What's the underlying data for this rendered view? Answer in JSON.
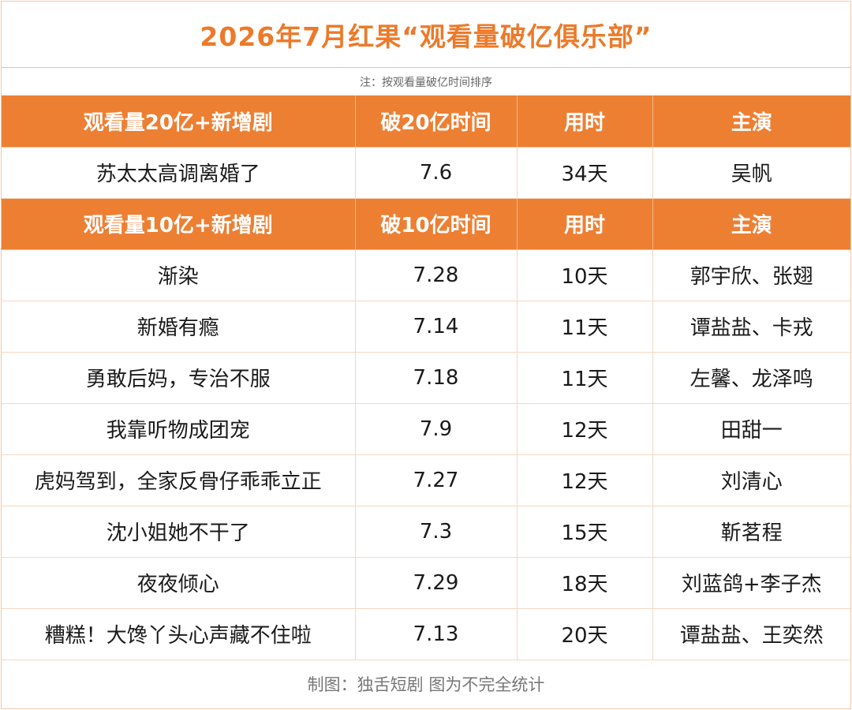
{
  "title": "2026年7月红果“观看量破亿俱乐部”",
  "note": "注：按观看量破亿时间排序",
  "section_20": {
    "headers": [
      "观看量20亿+新增剧",
      "破20亿时间",
      "用时",
      "主演"
    ],
    "rows": [
      [
        "苏太太高调离婚了",
        "7.6",
        "34天",
        "吴帆"
      ]
    ]
  },
  "section_10": {
    "headers": [
      "观看量10亿+新增剧",
      "破10亿时间",
      "用时",
      "主演"
    ],
    "rows": [
      [
        "渐染",
        "7.28",
        "10天",
        "郭宇欣、张翅"
      ],
      [
        "新婚有瘾",
        "7.14",
        "11天",
        "谭盐盐、卡戎"
      ],
      [
        "勇敢后妈，专治不服",
        "7.18",
        "11天",
        "左馨、龙泽鸣"
      ],
      [
        "我靠听物成团宠",
        "7.9",
        "12天",
        "田甜一"
      ],
      [
        "虎妈驾到，全家反骨仔乖乖立正",
        "7.27",
        "12天",
        "刘清心"
      ],
      [
        "沈小姐她不干了",
        "7.3",
        "15天",
        "靳茗程"
      ],
      [
        "夜夜倾心",
        "7.29",
        "18天",
        "刘蓝鸽+李子杰"
      ],
      [
        "糟糕！大馋丫头心声藏不住啦",
        "7.13",
        "20天",
        "谭盐盐、王奕然"
      ]
    ]
  },
  "footer": "制图：独舌短剧  图为不完全统计",
  "colors": {
    "accent": "#ed7f33",
    "title": "#ec7a2a",
    "grid": "#f4d8c2"
  }
}
